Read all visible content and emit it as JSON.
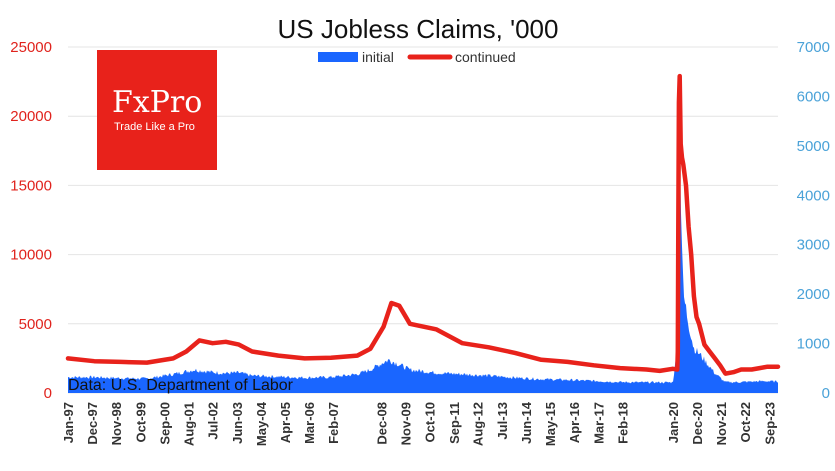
{
  "chart_data": {
    "type": "area+line",
    "title": "US Jobless Claims, '000",
    "source_note": "Data: U.S. Department of Labor",
    "legend": {
      "position": "top-center",
      "items": [
        {
          "label": "initial",
          "color": "#1a66ff",
          "kind": "area"
        },
        {
          "label": "continued",
          "color": "#e8221b",
          "kind": "line"
        }
      ]
    },
    "y_left": {
      "ticks": [
        "0",
        "5000",
        "10000",
        "15000",
        "20000",
        "25000"
      ],
      "range": [
        0,
        25000
      ],
      "color": "#e0231d",
      "series": "continued"
    },
    "y_right": {
      "ticks": [
        "0",
        "1000",
        "2000",
        "3000",
        "4000",
        "5000",
        "6000",
        "7000"
      ],
      "range": [
        0,
        7000
      ],
      "color": "#4aa2d8",
      "series": "initial"
    },
    "x": {
      "range": [
        1997.0,
        2024.0
      ],
      "tick_labels": [
        "Jan-97",
        "Dec-97",
        "Nov-98",
        "Oct-99",
        "Sep-00",
        "Aug-01",
        "Jul-02",
        "Jun-03",
        "May-04",
        "Apr-05",
        "Mar-06",
        "Feb-07",
        "Dec-08",
        "Nov-09",
        "Oct-10",
        "Sep-11",
        "Aug-12",
        "Jul-13",
        "Jun-14",
        "May-15",
        "Apr-16",
        "Mar-17",
        "Feb-18",
        "Jan-20",
        "Dec-20",
        "Nov-21",
        "Oct-22",
        "Sep-23"
      ],
      "tick_positions": [
        1997.0,
        1997.92,
        1998.83,
        1999.75,
        2000.67,
        2001.58,
        2002.5,
        2003.42,
        2004.33,
        2005.25,
        2006.17,
        2007.08,
        2008.92,
        2009.83,
        2010.75,
        2011.67,
        2012.58,
        2013.5,
        2014.42,
        2015.33,
        2016.25,
        2017.17,
        2018.08,
        2020.0,
        2020.92,
        2021.83,
        2022.75,
        2023.67
      ]
    },
    "grid": "horizontal",
    "series": [
      {
        "name": "initial",
        "axis": "right",
        "type": "area",
        "x": [
          1997.0,
          1998.0,
          1999.0,
          2000.0,
          2001.0,
          2001.8,
          2002.5,
          2003.0,
          2003.5,
          2004.0,
          2005.0,
          2006.0,
          2007.0,
          2008.0,
          2008.5,
          2009.0,
          2009.2,
          2009.5,
          2010.0,
          2011.0,
          2012.0,
          2013.0,
          2014.0,
          2015.0,
          2016.0,
          2017.0,
          2018.0,
          2019.0,
          2020.0,
          2020.2,
          2020.22,
          2020.25,
          2020.3,
          2020.4,
          2020.6,
          2020.8,
          2021.0,
          2021.3,
          2021.6,
          2021.9,
          2022.0,
          2022.5,
          2023.0,
          2023.5,
          2024.0
        ],
        "values": [
          320,
          320,
          300,
          290,
          380,
          470,
          420,
          400,
          410,
          350,
          330,
          310,
          320,
          380,
          470,
          620,
          670,
          600,
          470,
          410,
          380,
          350,
          310,
          280,
          265,
          245,
          220,
          215,
          215,
          1000,
          3000,
          6000,
          4000,
          2000,
          1400,
          900,
          800,
          600,
          400,
          260,
          220,
          220,
          230,
          240,
          230
        ]
      },
      {
        "name": "continued",
        "axis": "left",
        "type": "line",
        "x": [
          1997.0,
          1998.0,
          1999.0,
          2000.0,
          2001.0,
          2001.5,
          2002.0,
          2002.5,
          2003.0,
          2003.5,
          2004.0,
          2005.0,
          2006.0,
          2007.0,
          2008.0,
          2008.5,
          2009.0,
          2009.3,
          2009.6,
          2010.0,
          2011.0,
          2012.0,
          2013.0,
          2014.0,
          2015.0,
          2016.0,
          2017.0,
          2018.0,
          2019.0,
          2019.5,
          2020.0,
          2020.17,
          2020.19,
          2020.21,
          2020.23,
          2020.26,
          2020.3,
          2020.35,
          2020.4,
          2020.5,
          2020.6,
          2020.7,
          2020.8,
          2020.9,
          2021.0,
          2021.2,
          2021.4,
          2021.6,
          2021.8,
          2022.0,
          2022.3,
          2022.6,
          2023.0,
          2023.3,
          2023.6,
          2024.0
        ],
        "values": [
          2500,
          2300,
          2250,
          2200,
          2500,
          3000,
          3800,
          3600,
          3700,
          3500,
          3000,
          2700,
          2500,
          2550,
          2700,
          3200,
          4800,
          6500,
          6300,
          5000,
          4600,
          3600,
          3300,
          2900,
          2400,
          2250,
          2000,
          1800,
          1700,
          1600,
          1750,
          1700,
          3000,
          12000,
          21000,
          22900,
          18000,
          17000,
          16500,
          15000,
          12000,
          10000,
          7000,
          5500,
          5000,
          3500,
          3000,
          2500,
          2000,
          1400,
          1500,
          1700,
          1700,
          1800,
          1900,
          1900
        ]
      }
    ]
  },
  "logo": {
    "word": "FxPro",
    "tagline": "Trade Like a Pro",
    "color": "#e8221b"
  }
}
